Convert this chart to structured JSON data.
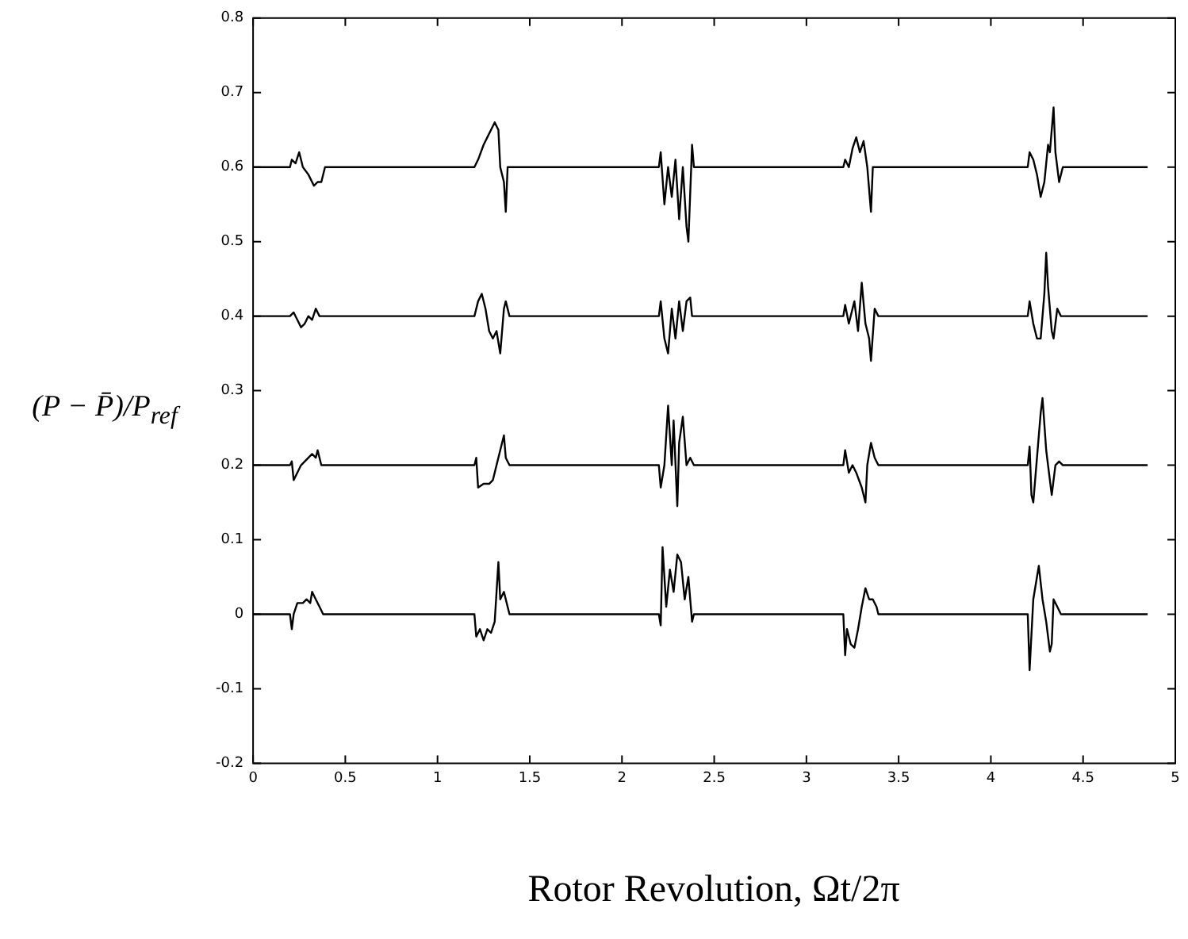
{
  "chart_data": {
    "type": "line",
    "xlabel": "Rotor Revolution, Ωt/2π",
    "ylabel": "(P − P̄)/P$_{ref}$",
    "xlim": [
      0,
      5
    ],
    "ylim": [
      -0.2,
      0.8
    ],
    "xticks": [
      0,
      0.5,
      1,
      1.5,
      2,
      2.5,
      3,
      3.5,
      4,
      4.5,
      5
    ],
    "yticks": [
      -0.2,
      -0.1,
      0,
      0.1,
      0.2,
      0.3,
      0.4,
      0.5,
      0.6,
      0.7,
      0.8
    ],
    "grid": false,
    "legend": false,
    "marker": "none",
    "line_style": "solid",
    "series": [
      {
        "color": "#000000",
        "x": [
          0,
          0.2,
          0.21,
          0.23,
          0.25,
          0.27,
          0.3,
          0.33,
          0.35,
          0.37,
          0.39,
          1.2,
          1.22,
          1.25,
          1.27,
          1.29,
          1.31,
          1.33,
          1.34,
          1.36,
          1.37,
          1.38,
          2.2,
          2.21,
          2.23,
          2.25,
          2.27,
          2.29,
          2.31,
          2.33,
          2.35,
          2.36,
          2.38,
          2.39,
          3.2,
          3.21,
          3.23,
          3.25,
          3.27,
          3.29,
          3.31,
          3.33,
          3.35,
          3.36,
          4.2,
          4.21,
          4.23,
          4.25,
          4.27,
          4.29,
          4.31,
          4.32,
          4.34,
          4.35,
          4.37,
          4.39,
          4.85
        ],
        "values": [
          0.6,
          0.6,
          0.61,
          0.605,
          0.62,
          0.6,
          0.59,
          0.575,
          0.58,
          0.58,
          0.6,
          0.6,
          0.61,
          0.63,
          0.64,
          0.65,
          0.66,
          0.65,
          0.6,
          0.58,
          0.54,
          0.6,
          0.6,
          0.62,
          0.55,
          0.6,
          0.56,
          0.61,
          0.53,
          0.6,
          0.52,
          0.5,
          0.63,
          0.6,
          0.6,
          0.61,
          0.6,
          0.625,
          0.64,
          0.62,
          0.635,
          0.6,
          0.54,
          0.6,
          0.6,
          0.62,
          0.61,
          0.59,
          0.56,
          0.58,
          0.63,
          0.62,
          0.68,
          0.62,
          0.58,
          0.6,
          0.6
        ]
      },
      {
        "color": "#000000",
        "x": [
          0,
          0.2,
          0.22,
          0.24,
          0.26,
          0.28,
          0.3,
          0.32,
          0.34,
          0.36,
          1.2,
          1.22,
          1.24,
          1.26,
          1.28,
          1.3,
          1.32,
          1.34,
          1.36,
          1.37,
          1.39,
          2.2,
          2.21,
          2.23,
          2.25,
          2.27,
          2.29,
          2.31,
          2.33,
          2.35,
          2.37,
          2.38,
          3.2,
          3.21,
          3.23,
          3.26,
          3.28,
          3.3,
          3.32,
          3.34,
          3.35,
          3.37,
          3.39,
          4.2,
          4.21,
          4.23,
          4.25,
          4.27,
          4.29,
          4.3,
          4.31,
          4.33,
          4.34,
          4.36,
          4.38,
          4.85
        ],
        "values": [
          0.4,
          0.4,
          0.405,
          0.395,
          0.385,
          0.39,
          0.4,
          0.395,
          0.41,
          0.4,
          0.4,
          0.42,
          0.43,
          0.41,
          0.38,
          0.37,
          0.38,
          0.35,
          0.41,
          0.42,
          0.4,
          0.4,
          0.42,
          0.37,
          0.35,
          0.41,
          0.37,
          0.42,
          0.38,
          0.42,
          0.425,
          0.4,
          0.4,
          0.415,
          0.39,
          0.42,
          0.38,
          0.445,
          0.39,
          0.37,
          0.34,
          0.41,
          0.4,
          0.4,
          0.42,
          0.39,
          0.37,
          0.37,
          0.43,
          0.485,
          0.44,
          0.38,
          0.37,
          0.41,
          0.4,
          0.4
        ]
      },
      {
        "color": "#000000",
        "x": [
          0,
          0.2,
          0.21,
          0.22,
          0.24,
          0.26,
          0.28,
          0.3,
          0.32,
          0.34,
          0.35,
          0.37,
          1.2,
          1.21,
          1.22,
          1.25,
          1.28,
          1.3,
          1.32,
          1.34,
          1.36,
          1.37,
          1.39,
          2.2,
          2.21,
          2.23,
          2.25,
          2.27,
          2.28,
          2.3,
          2.31,
          2.33,
          2.35,
          2.37,
          2.39,
          3.2,
          3.21,
          3.23,
          3.25,
          3.27,
          3.3,
          3.32,
          3.33,
          3.35,
          3.37,
          3.39,
          4.2,
          4.21,
          4.22,
          4.23,
          4.25,
          4.27,
          4.28,
          4.3,
          4.31,
          4.33,
          4.35,
          4.37,
          4.39,
          4.85
        ],
        "values": [
          0.2,
          0.2,
          0.205,
          0.18,
          0.19,
          0.2,
          0.205,
          0.21,
          0.215,
          0.21,
          0.22,
          0.2,
          0.2,
          0.21,
          0.17,
          0.175,
          0.175,
          0.18,
          0.2,
          0.22,
          0.24,
          0.21,
          0.2,
          0.2,
          0.17,
          0.2,
          0.28,
          0.2,
          0.26,
          0.145,
          0.23,
          0.265,
          0.2,
          0.21,
          0.2,
          0.2,
          0.22,
          0.19,
          0.2,
          0.19,
          0.17,
          0.15,
          0.2,
          0.23,
          0.21,
          0.2,
          0.2,
          0.225,
          0.16,
          0.15,
          0.21,
          0.27,
          0.29,
          0.22,
          0.2,
          0.16,
          0.2,
          0.205,
          0.2,
          0.2
        ]
      },
      {
        "color": "#000000",
        "x": [
          0,
          0.2,
          0.21,
          0.22,
          0.24,
          0.27,
          0.29,
          0.31,
          0.32,
          0.34,
          0.36,
          0.38,
          1.2,
          1.21,
          1.23,
          1.25,
          1.27,
          1.29,
          1.31,
          1.32,
          1.33,
          1.34,
          1.36,
          1.38,
          1.39,
          2.2,
          2.21,
          2.22,
          2.24,
          2.26,
          2.28,
          2.3,
          2.32,
          2.34,
          2.36,
          2.38,
          2.39,
          3.2,
          3.21,
          3.22,
          3.24,
          3.26,
          3.28,
          3.3,
          3.32,
          3.34,
          3.36,
          3.38,
          3.39,
          4.2,
          4.21,
          4.23,
          4.25,
          4.26,
          4.28,
          4.3,
          4.32,
          4.33,
          4.34,
          4.36,
          4.38,
          4.85
        ],
        "values": [
          0,
          0,
          -0.02,
          0,
          0.015,
          0.015,
          0.02,
          0.015,
          0.03,
          0.02,
          0.01,
          0,
          0,
          -0.03,
          -0.02,
          -0.035,
          -0.02,
          -0.025,
          -0.01,
          0.03,
          0.07,
          0.02,
          0.03,
          0.01,
          0,
          0,
          -0.015,
          0.09,
          0.01,
          0.06,
          0.03,
          0.08,
          0.07,
          0.02,
          0.05,
          -0.01,
          0,
          0,
          -0.055,
          -0.02,
          -0.04,
          -0.045,
          -0.02,
          0.01,
          0.035,
          0.02,
          0.02,
          0.01,
          0,
          0,
          -0.075,
          0.02,
          0.05,
          0.065,
          0.02,
          -0.01,
          -0.05,
          -0.04,
          0.02,
          0.01,
          0,
          0
        ]
      }
    ]
  }
}
